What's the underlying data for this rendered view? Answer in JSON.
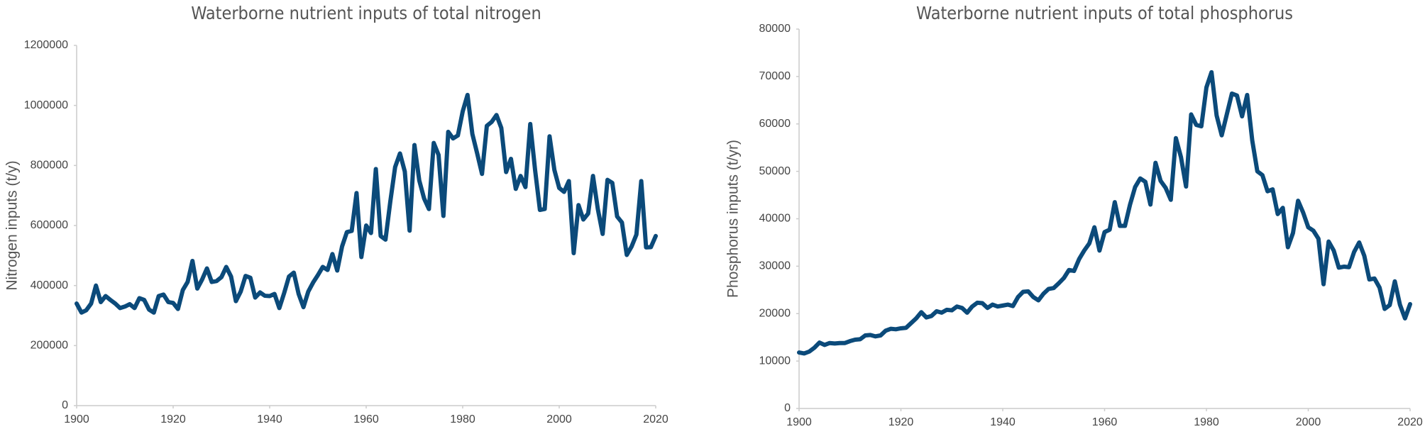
{
  "chart_data": [
    {
      "type": "line",
      "title": "Waterborne nutrient inputs of total nitrogen",
      "y_label": "Nitrogen inputs (t/y)",
      "x": [
        1900,
        1901,
        1902,
        1903,
        1904,
        1905,
        1906,
        1907,
        1908,
        1909,
        1910,
        1911,
        1912,
        1913,
        1914,
        1915,
        1916,
        1917,
        1918,
        1919,
        1920,
        1921,
        1922,
        1923,
        1924,
        1925,
        1926,
        1927,
        1928,
        1929,
        1930,
        1931,
        1932,
        1933,
        1934,
        1935,
        1936,
        1937,
        1938,
        1939,
        1940,
        1941,
        1942,
        1943,
        1944,
        1945,
        1946,
        1947,
        1948,
        1949,
        1950,
        1951,
        1952,
        1953,
        1954,
        1955,
        1956,
        1957,
        1958,
        1959,
        1960,
        1961,
        1962,
        1963,
        1964,
        1965,
        1966,
        1967,
        1968,
        1969,
        1970,
        1971,
        1972,
        1973,
        1974,
        1975,
        1976,
        1977,
        1978,
        1979,
        1980,
        1981,
        1982,
        1983,
        1984,
        1985,
        1986,
        1987,
        1988,
        1989,
        1990,
        1991,
        1992,
        1993,
        1994,
        1995,
        1996,
        1997,
        1998,
        1999,
        2000,
        2001,
        2002,
        2003,
        2004,
        2005,
        2006,
        2007,
        2008,
        2009,
        2010,
        2011,
        2012,
        2013,
        2014,
        2015,
        2016,
        2017,
        2018,
        2019,
        2020
      ],
      "series": [
        {
          "name": "Total nitrogen",
          "color": "#0b4a7a",
          "values": [
            340000,
            310000,
            318000,
            340000,
            400000,
            345000,
            365000,
            352000,
            340000,
            325000,
            330000,
            338000,
            325000,
            358000,
            352000,
            320000,
            310000,
            365000,
            370000,
            345000,
            342000,
            322000,
            385000,
            412000,
            482000,
            390000,
            420000,
            457000,
            412000,
            415000,
            428000,
            462000,
            430000,
            348000,
            380000,
            432000,
            426000,
            360000,
            377000,
            366000,
            365000,
            372000,
            325000,
            375000,
            430000,
            443000,
            372000,
            328000,
            380000,
            410000,
            435000,
            462000,
            452000,
            505000,
            450000,
            530000,
            578000,
            582000,
            708000,
            495000,
            600000,
            575000,
            788000,
            565000,
            553000,
            680000,
            795000,
            840000,
            780000,
            583000,
            868000,
            750000,
            690000,
            655000,
            875000,
            835000,
            632000,
            912000,
            890000,
            900000,
            980000,
            1035000,
            905000,
            840000,
            772000,
            932000,
            945000,
            968000,
            925000,
            778000,
            822000,
            722000,
            765000,
            728000,
            938000,
            785000,
            652000,
            655000,
            897000,
            785000,
            725000,
            712000,
            748000,
            508000,
            668000,
            620000,
            640000,
            765000,
            655000,
            572000,
            752000,
            742000,
            630000,
            610000,
            502000,
            530000,
            570000,
            748000,
            527000,
            528000,
            565000
          ]
        }
      ],
      "xlim": [
        1900,
        2020
      ],
      "xticks": [
        1900,
        1920,
        1940,
        1960,
        1980,
        2000,
        2020
      ],
      "ylim": [
        0,
        1200000
      ],
      "yticks": [
        0,
        200000,
        400000,
        600000,
        800000,
        1000000,
        1200000
      ],
      "grid": false
    },
    {
      "type": "line",
      "title": "Waterborne nutrient inputs of total phosphorus",
      "y_label": "Phosphorus inputs (t/yr)",
      "x": [
        1900,
        1901,
        1902,
        1903,
        1904,
        1905,
        1906,
        1907,
        1908,
        1909,
        1910,
        1911,
        1912,
        1913,
        1914,
        1915,
        1916,
        1917,
        1918,
        1919,
        1920,
        1921,
        1922,
        1923,
        1924,
        1925,
        1926,
        1927,
        1928,
        1929,
        1930,
        1931,
        1932,
        1933,
        1934,
        1935,
        1936,
        1937,
        1938,
        1939,
        1940,
        1941,
        1942,
        1943,
        1944,
        1945,
        1946,
        1947,
        1948,
        1949,
        1950,
        1951,
        1952,
        1953,
        1954,
        1955,
        1956,
        1957,
        1958,
        1959,
        1960,
        1961,
        1962,
        1963,
        1964,
        1965,
        1966,
        1967,
        1968,
        1969,
        1970,
        1971,
        1972,
        1973,
        1974,
        1975,
        1976,
        1977,
        1978,
        1979,
        1980,
        1981,
        1982,
        1983,
        1984,
        1985,
        1986,
        1987,
        1988,
        1989,
        1990,
        1991,
        1992,
        1993,
        1994,
        1995,
        1996,
        1997,
        1998,
        1999,
        2000,
        2001,
        2002,
        2003,
        2004,
        2005,
        2006,
        2007,
        2008,
        2009,
        2010,
        2011,
        2012,
        2013,
        2014,
        2015,
        2016,
        2017,
        2018,
        2019,
        2020
      ],
      "series": [
        {
          "name": "Total phosphorus",
          "color": "#0b4a7a",
          "values": [
            11800,
            11600,
            12000,
            12800,
            13900,
            13400,
            13800,
            13700,
            13800,
            13800,
            14200,
            14500,
            14600,
            15400,
            15500,
            15200,
            15400,
            16400,
            16800,
            16700,
            16900,
            17000,
            18000,
            19000,
            20300,
            19200,
            19500,
            20500,
            20200,
            20800,
            20700,
            21500,
            21200,
            20200,
            21500,
            22300,
            22200,
            21200,
            21900,
            21500,
            21700,
            21900,
            21600,
            23500,
            24600,
            24700,
            23500,
            22800,
            24200,
            25200,
            25400,
            26400,
            27500,
            29200,
            29000,
            31500,
            33300,
            34800,
            38200,
            33300,
            37200,
            37700,
            43500,
            38500,
            38500,
            43000,
            46700,
            48500,
            47800,
            43000,
            51800,
            48000,
            46500,
            44000,
            57000,
            53000,
            46800,
            62000,
            59800,
            59500,
            67700,
            70900,
            61800,
            57600,
            62000,
            66400,
            66000,
            61600,
            66100,
            56500,
            50000,
            49200,
            45800,
            46200,
            41000,
            42300,
            34000,
            37000,
            43800,
            41300,
            38200,
            37500,
            35800,
            26200,
            35200,
            33300,
            29700,
            29900,
            29800,
            33000,
            35000,
            32200,
            27200,
            27400,
            25500,
            21000,
            21800,
            26800,
            21900,
            19000,
            22000
          ]
        }
      ],
      "xlim": [
        1900,
        2020
      ],
      "xticks": [
        1900,
        1920,
        1940,
        1960,
        1980,
        2000,
        2020
      ],
      "ylim": [
        0,
        80000
      ],
      "yticks": [
        0,
        10000,
        20000,
        30000,
        40000,
        50000,
        60000,
        70000,
        80000
      ],
      "grid": false
    }
  ]
}
